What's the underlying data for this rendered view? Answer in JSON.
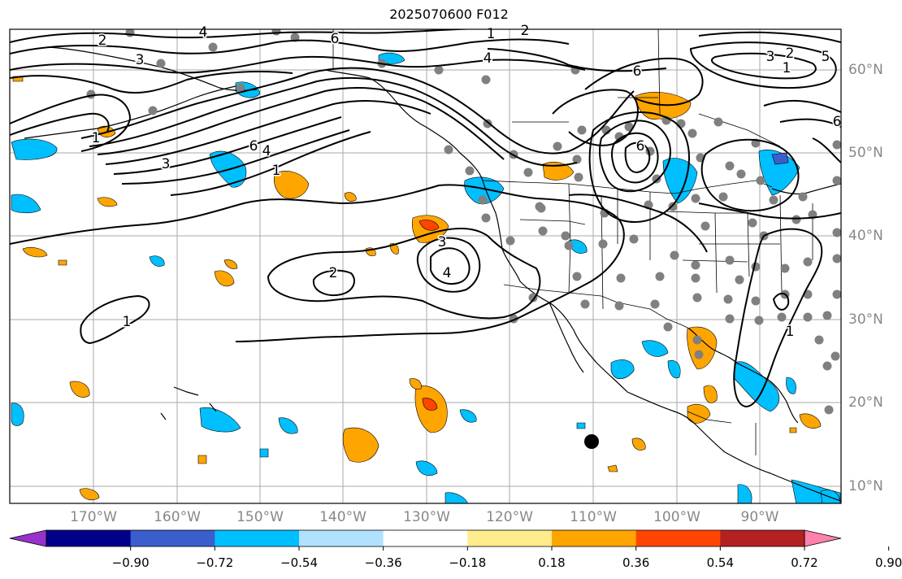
{
  "title": "2025070600 F012",
  "map": {
    "longitude_labels": [
      "170°W",
      "160°W",
      "150°W",
      "140°W",
      "130°W",
      "120°W",
      "110°W",
      "100°W",
      "90°W"
    ],
    "latitude_labels": [
      "60°N",
      "50°N",
      "40°N",
      "30°N",
      "20°N",
      "10°N"
    ],
    "contour_labels": [
      "2",
      "3",
      "4",
      "6",
      "1",
      "2",
      "4",
      "6",
      "1",
      "3",
      "2",
      "5",
      "6",
      "1",
      "6",
      "4",
      "3",
      "1",
      "2",
      "3",
      "4",
      "1",
      "1",
      "6"
    ],
    "colors": {
      "land_outline": "#000000",
      "grid": "#aaaaaa",
      "station_dot": "#808080",
      "center_marker": "#000000"
    }
  },
  "colorbar": {
    "colors": [
      "#9932cc",
      "#00008b",
      "#3a5fcd",
      "#00bfff",
      "#b0e2ff",
      "#ffffff",
      "#ffec8b",
      "#ffa500",
      "#ff4500",
      "#b22222",
      "#ff82ab"
    ],
    "tick_labels": [
      "−0.90",
      "−0.72",
      "−0.54",
      "−0.36",
      "−0.18",
      "0.18",
      "0.36",
      "0.54",
      "0.72",
      "0.90"
    ]
  }
}
